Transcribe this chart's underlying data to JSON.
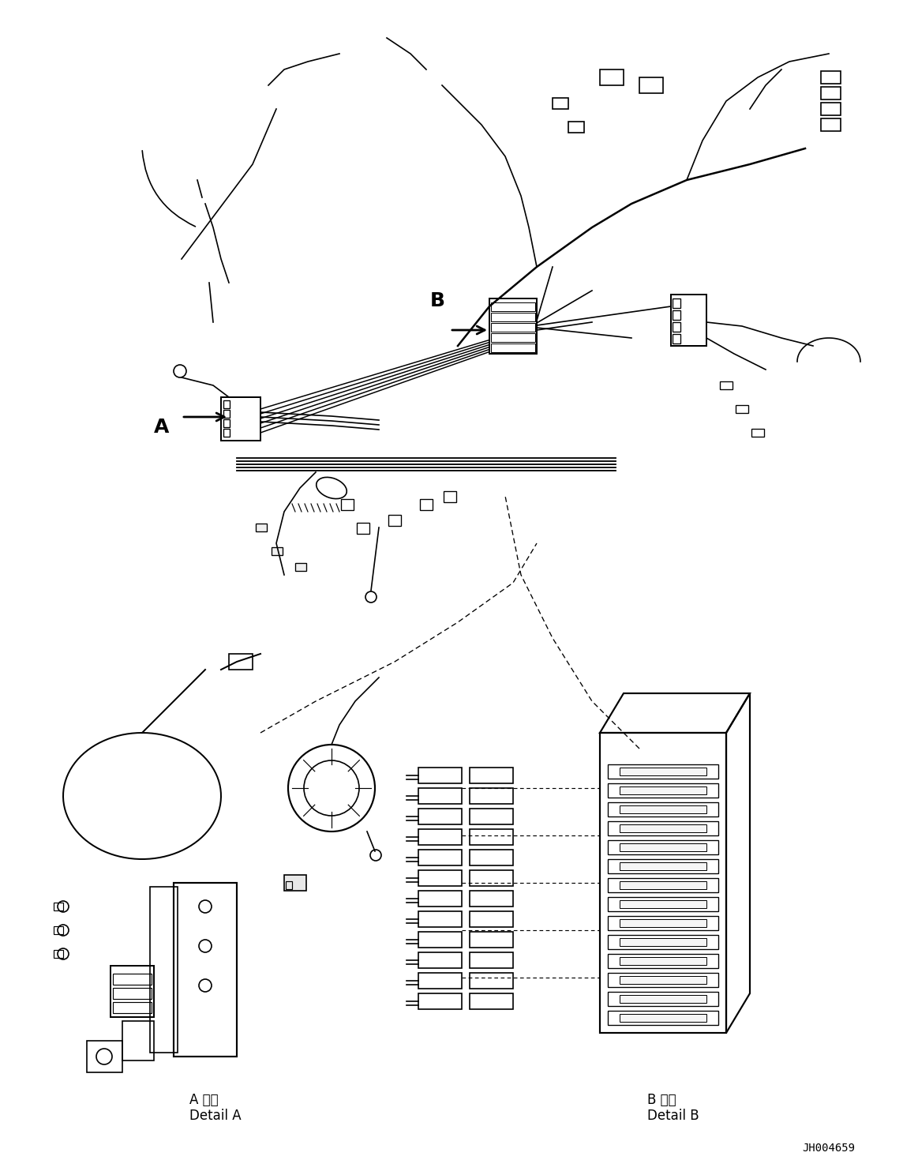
{
  "figure_width": 11.63,
  "figure_height": 14.88,
  "background_color": "#ffffff",
  "part_id": "JH004659",
  "label_A": "A",
  "label_B": "B",
  "detail_A_japanese": "A 詳細",
  "detail_A_english": "Detail A",
  "detail_B_japanese": "B 詳細",
  "detail_B_english": "Detail B",
  "line_color": "#000000",
  "line_width": 1.2,
  "arrow_color": "#000000"
}
